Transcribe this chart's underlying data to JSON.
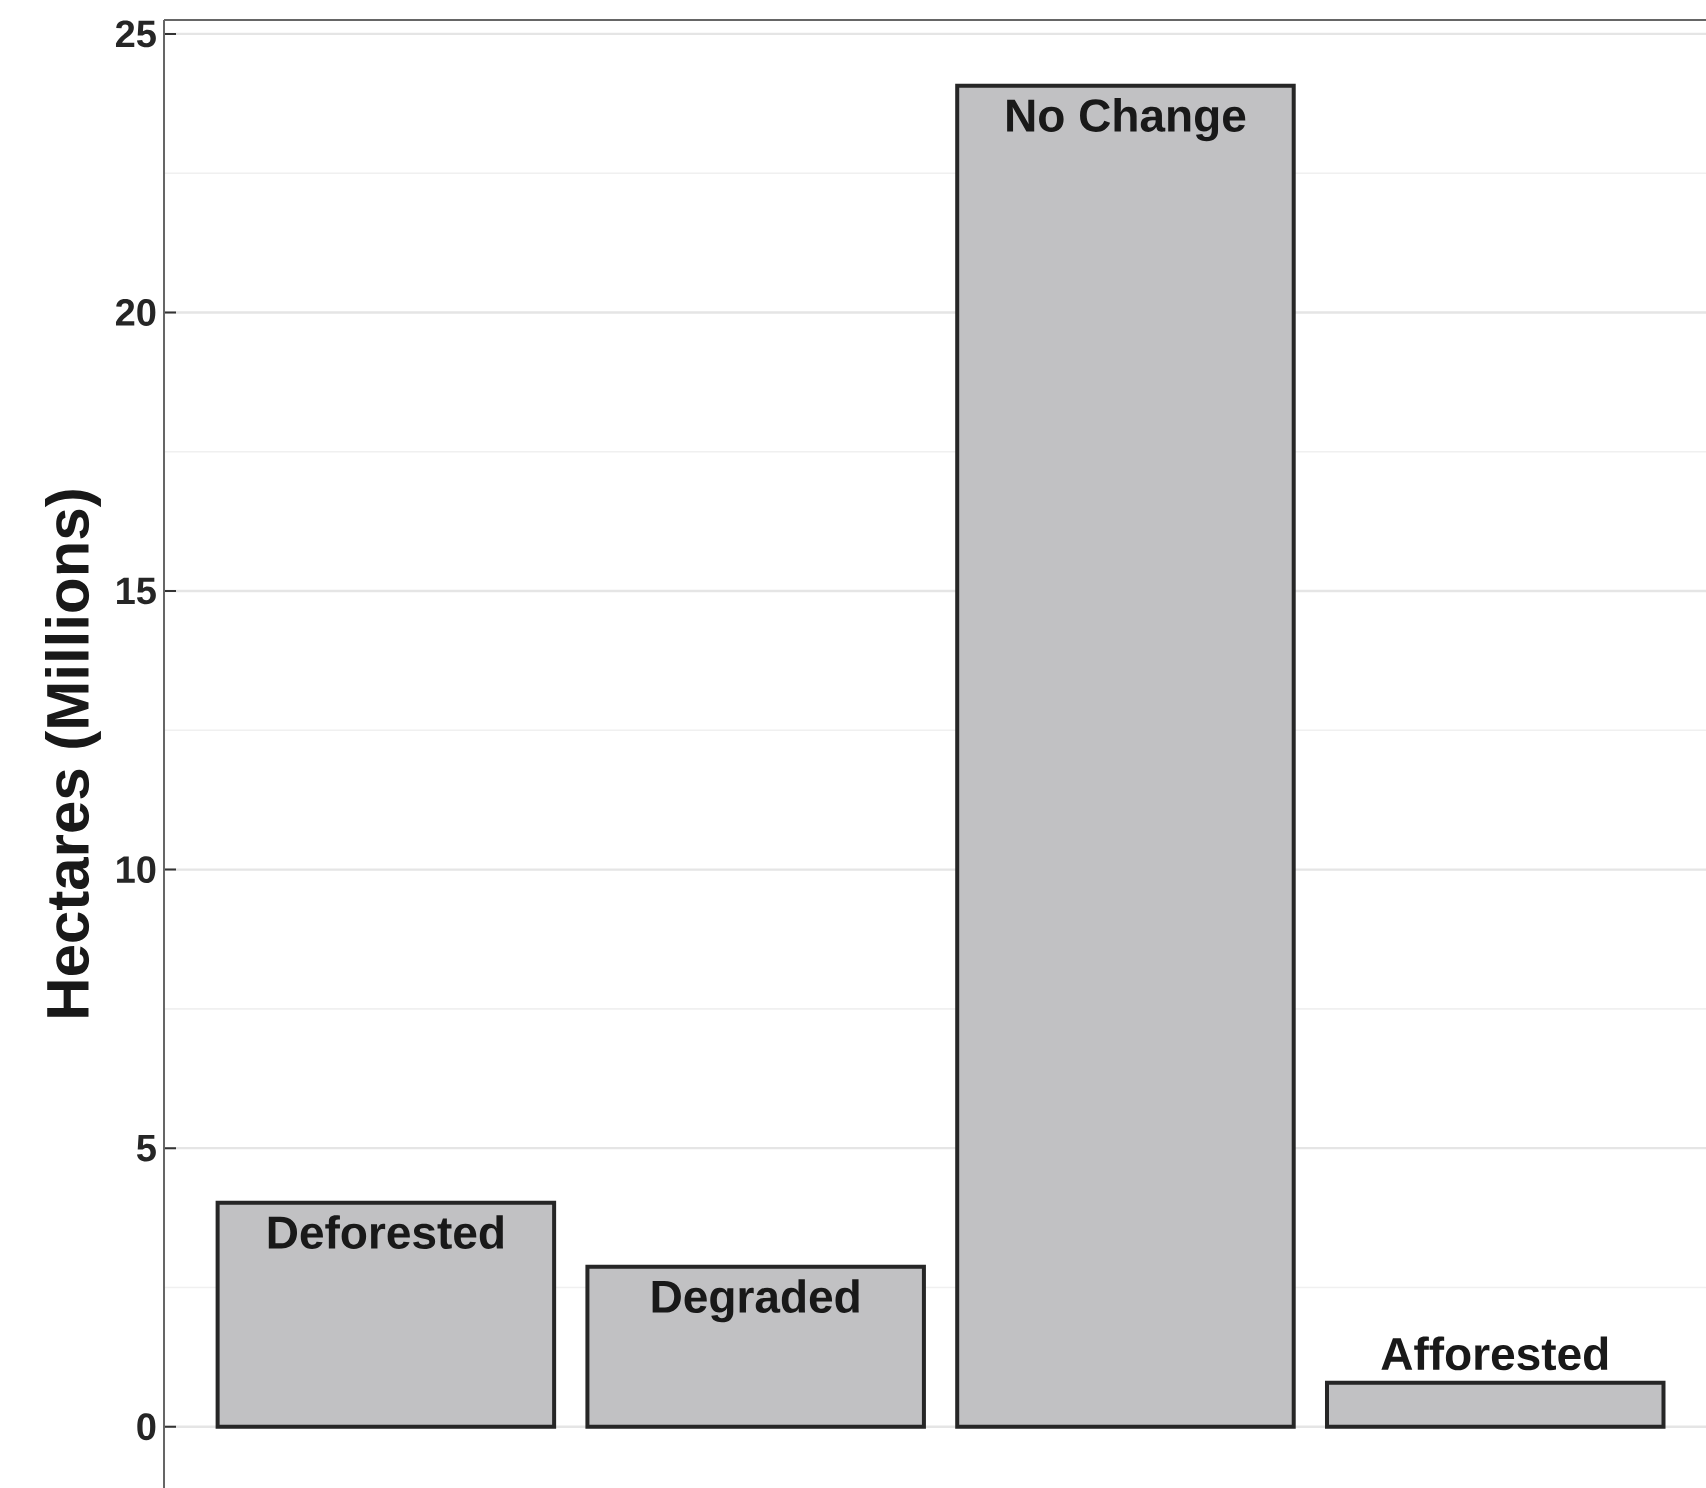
{
  "chart_data": {
    "type": "bar",
    "ylabel": "Hectares (Millions)",
    "categories": [
      "Deforested",
      "Degraded",
      "No Change",
      "Afforested"
    ],
    "values": [
      4.02,
      2.87,
      24.07,
      0.79
    ],
    "color": "#c1c1c3",
    "ylim": [
      -1.1,
      25.25
    ],
    "yticks": [
      0,
      5,
      10,
      15,
      20,
      25
    ],
    "grid": true,
    "tick_labels": "y"
  }
}
